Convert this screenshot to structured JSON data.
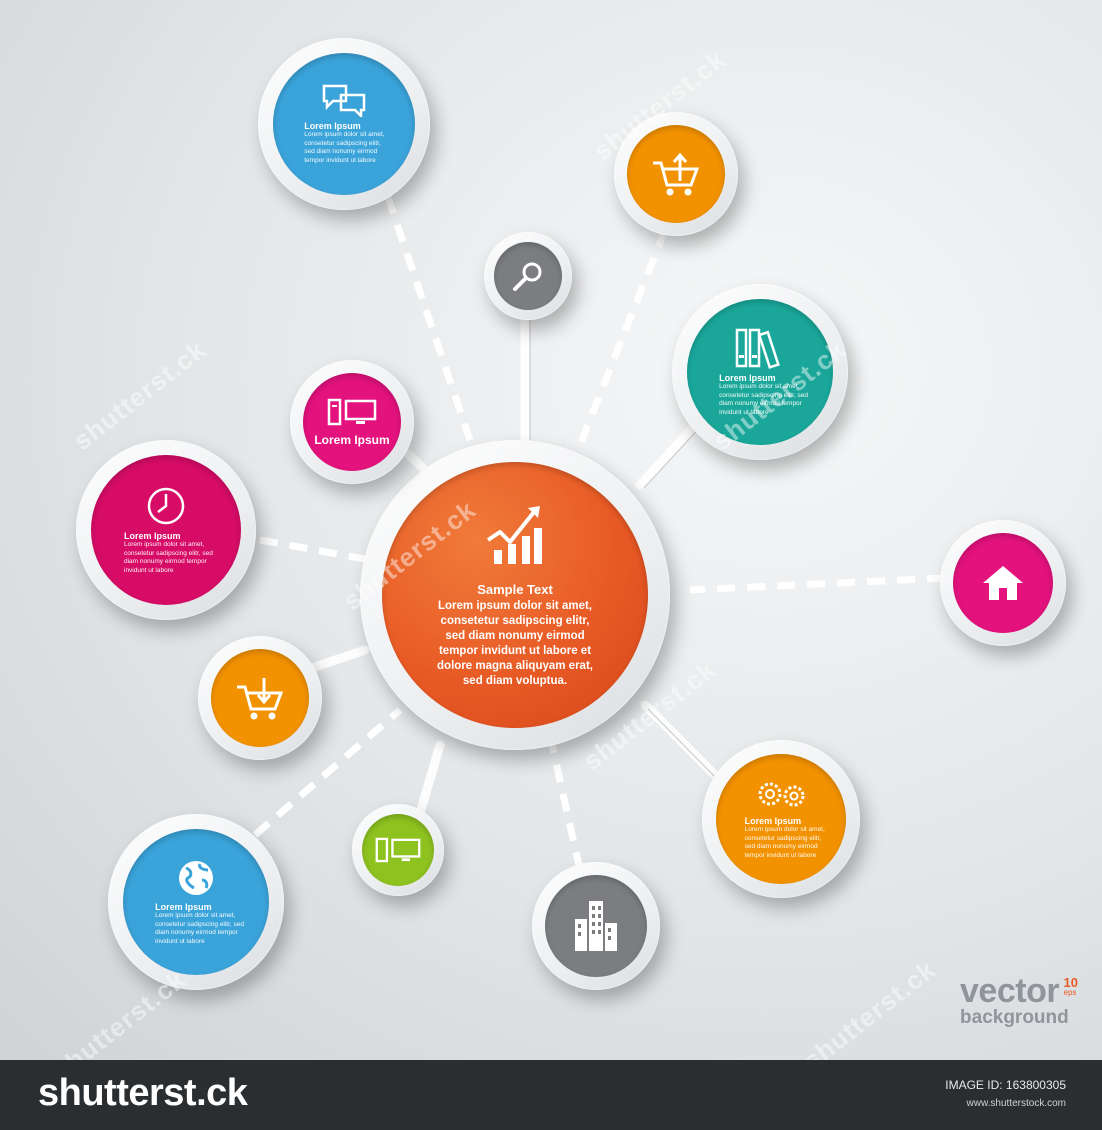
{
  "center": {
    "title": "Sample Text",
    "lines": [
      "Lorem ipsum dolor sit amet,",
      "consetetur sadipscing elitr,",
      "sed diam nonumy eirmod",
      "tempor invidunt ut labore et",
      "dolore magna aliquyam erat,",
      "sed diam voluptua."
    ],
    "color": "#e85a25",
    "icon": "growth-chart-icon"
  },
  "nodes": [
    {
      "id": "chat",
      "color": "#3aa3d9",
      "icon": "chat-bubbles-icon",
      "title": "Lorem Ipsum",
      "body": "Lorem ipsum dolor sit amet, consetetur sadipscing elitr, sed diam nonumy eirmod tempor invidunt ut labore"
    },
    {
      "id": "cart-up",
      "color": "#f39200",
      "icon": "shopping-cart-up-icon"
    },
    {
      "id": "search",
      "color": "#7b7d80",
      "icon": "magnifier-icon"
    },
    {
      "id": "folders",
      "color": "#1aa79a",
      "icon": "binders-icon",
      "title": "Lorem Ipsum",
      "body": "Lorem ipsum dolor sit amet, consetetur sadipscing elitr, sed diam nonumy eirmod tempor invidunt ut labore"
    },
    {
      "id": "computer",
      "color": "#e3127d",
      "icon": "desktop-computer-icon",
      "label": "Lorem Ipsum"
    },
    {
      "id": "clock",
      "color": "#d60c67",
      "icon": "clock-icon",
      "title": "Lorem Ipsum",
      "body": "Lorem ipsum dolor sit amet, consetetur sadipscing elitr, sed diam nonumy eirmod tempor invidunt ut labore"
    },
    {
      "id": "home",
      "color": "#e3127d",
      "icon": "house-icon"
    },
    {
      "id": "cart-down",
      "color": "#f39200",
      "icon": "shopping-cart-down-icon"
    },
    {
      "id": "gears",
      "color": "#f39200",
      "icon": "gears-icon",
      "title": "Lorem Ipsum",
      "body": "Lorem ipsum dolor sit amet, consetetur sadipscing elitr, sed diam nonumy eirmod tempor invidunt ut labore"
    },
    {
      "id": "globe",
      "color": "#3aa3d9",
      "icon": "globe-icon",
      "title": "Lorem Ipsum",
      "body": "Lorem ipsum dolor sit amet, consetetur sadipscing elitr, sed diam nonumy eirmod tempor invidunt ut labore"
    },
    {
      "id": "pc-green",
      "color": "#8dc21f",
      "icon": "desktop-computer-icon"
    },
    {
      "id": "building",
      "color": "#7b7d80",
      "icon": "office-building-icon"
    }
  ],
  "watermark": "shutterst.ck",
  "brand": {
    "word": "vector",
    "version": "10",
    "format": "eps",
    "sub": "background"
  },
  "footer": {
    "logo": "shutterst.ck",
    "image_id": "IMAGE ID: 163800305",
    "site": "www.shutterstock.com"
  }
}
